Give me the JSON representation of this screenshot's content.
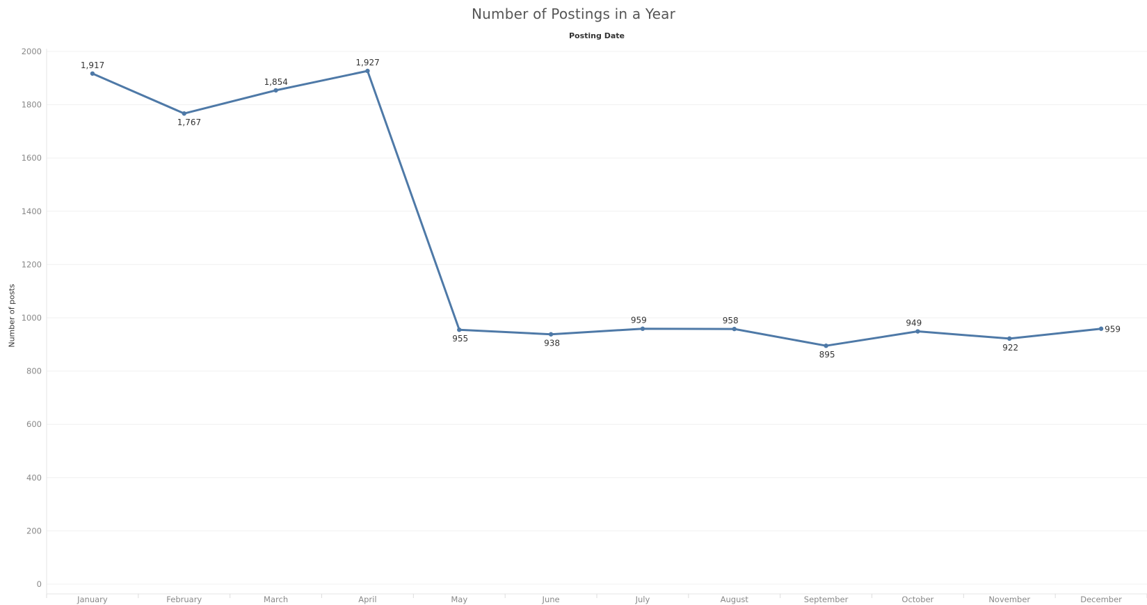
{
  "chart_data": {
    "type": "line",
    "title": "Number of Postings in a Year",
    "xlabel": "Posting Date",
    "ylabel": "Number of posts",
    "categories": [
      "January",
      "February",
      "March",
      "April",
      "May",
      "June",
      "July",
      "August",
      "September",
      "October",
      "November",
      "December"
    ],
    "values": [
      1917,
      1767,
      1854,
      1927,
      955,
      938,
      959,
      958,
      895,
      949,
      922,
      959
    ],
    "data_labels": [
      "1,917",
      "1,767",
      "1,854",
      "1,927",
      "955",
      "938",
      "959",
      "958",
      "895",
      "949",
      "922",
      "959"
    ],
    "label_placement": [
      "above",
      "below",
      "above",
      "above",
      "below",
      "below",
      "above",
      "above",
      "below",
      "above",
      "below",
      "right"
    ],
    "ylim": [
      0,
      2000
    ],
    "yticks": [
      0,
      200,
      400,
      600,
      800,
      1000,
      1200,
      1400,
      1600,
      1800,
      2000
    ],
    "grid": true,
    "line_color": "#4e79a7",
    "grid_color": "#f0f0f0"
  }
}
